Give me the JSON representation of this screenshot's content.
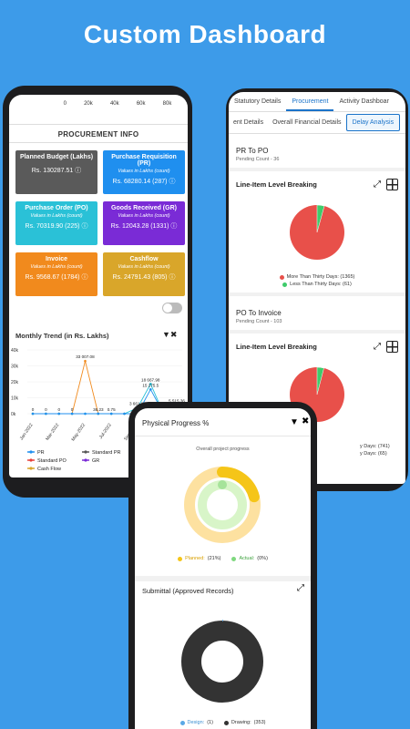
{
  "headline": "Custom Dashboard",
  "left_phone": {
    "axis_ticks": [
      "0",
      "20k",
      "40k",
      "60k",
      "80k"
    ],
    "procurement_title": "PROCUREMENT INFO",
    "tiles": [
      {
        "title": "Planned Budget (Lakhs)",
        "sub": "",
        "value": "Rs. 130287.51",
        "color": "#5a5a5a",
        "info": true
      },
      {
        "title": "Purchase Requisition (PR)",
        "sub": "Values in Lakhs (count)",
        "value": "Rs. 68280.14 (287)",
        "color": "#1f8fef",
        "info": true
      },
      {
        "title": "Purchase Order (PO)",
        "sub": "Values in Lakhs (count)",
        "value": "Rs. 70319.90 (225)",
        "color": "#2ac1d7",
        "info": true
      },
      {
        "title": "Goods Received (GR)",
        "sub": "Values in Lakhs (count)",
        "value": "Rs. 12043.28 (1331)",
        "color": "#7a2bd6",
        "info": true
      },
      {
        "title": "Invoice",
        "sub": "Values in Lakhs (count)",
        "value": "Rs. 9568.67 (1784)",
        "color": "#f18a1d",
        "info": true
      },
      {
        "title": "Cashflow",
        "sub": "Values in Lakhs (count)",
        "value": "Rs. 24791.43 (805)",
        "color": "#d9a62a",
        "info": true
      }
    ],
    "trend_title": "Monthly Trend (in Rs. Lakhs)",
    "chart_data": {
      "type": "line",
      "categories": [
        "Jan-2022",
        "Mar-2022",
        "May-2022",
        "Jul-2022",
        "Sep-2022",
        "Nov-2022"
      ],
      "ytick_labels": [
        "40k",
        "30k",
        "20k",
        "10k",
        "0k"
      ],
      "ylim": [
        0,
        40000
      ],
      "point_labels": [
        "33 007.08",
        "18 667.98",
        "15 275.5",
        "3 661.21",
        "5 515.36",
        "36.23",
        "0.75",
        "22.5"
      ],
      "series": [
        {
          "name": "PR",
          "color": "#1f8fef"
        },
        {
          "name": "Standard PR",
          "color": "#555555"
        },
        {
          "name": "Standard PO",
          "color": "#e8413a"
        },
        {
          "name": "GR",
          "color": "#7a2bd6"
        },
        {
          "name": "Cash Flow",
          "color": "#d9a62a"
        }
      ]
    }
  },
  "right_phone": {
    "tabs": [
      "Statutory Details",
      "Procurement",
      "Activity Dashboar"
    ],
    "active_tab": "Procurement",
    "subtabs": [
      "ent Details",
      "Overall Financial Details",
      "Delay Analysis"
    ],
    "active_subtab": "Delay Analysis",
    "section1": {
      "title": "PR To PO",
      "pending": "Pending Count - 36"
    },
    "card1": {
      "title": "Line-Item Level Breaking",
      "legend": [
        {
          "label": "More Than Thirty Days: (1365)",
          "color": "#e8504a"
        },
        {
          "label": "Less Than Thirty Days: (61)",
          "color": "#3fcb6b"
        }
      ]
    },
    "section2": {
      "title": "PO To Invoice",
      "pending": "Pending Count - 103"
    },
    "card2": {
      "title": "Line-Item Level Breaking",
      "legend": [
        {
          "label": "y Days: (741)",
          "color": "#e8504a"
        },
        {
          "label": "y Days: (65)",
          "color": "#3fcb6b"
        }
      ]
    }
  },
  "front_phone": {
    "progress_title": "Physical Progress %",
    "progress_sub": "Overall project progress",
    "progress_legend": [
      {
        "label": "Planned:",
        "value": "(21%)",
        "color": "#f5c518"
      },
      {
        "label": "Actual:",
        "value": "(0%)",
        "color": "#7fd87f"
      }
    ],
    "planned_pct": 21,
    "actual_pct": 0,
    "submittal_title": "Submittal (Approved Records)",
    "submittal_legend": [
      {
        "label": "Design:",
        "value": "(1)",
        "color": "#5aa9e6"
      },
      {
        "label": "Drawing:",
        "value": "(353)",
        "color": "#333333"
      }
    ]
  }
}
